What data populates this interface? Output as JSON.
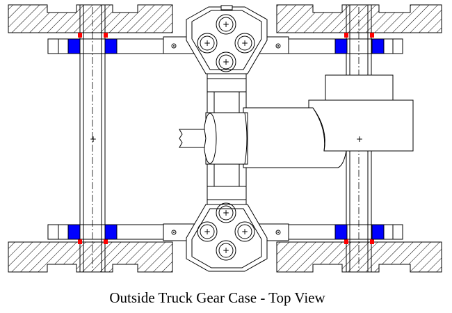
{
  "caption": "Outside Truck Gear Case - Top View",
  "colors": {
    "background": "#ffffff",
    "line": "#000000",
    "bearing_block": "#0000ff",
    "contact_mark": "#ff0000"
  },
  "center_marks": [
    "+",
    "+",
    "+",
    "+",
    "+",
    "+",
    "+",
    "+",
    "+",
    "+"
  ],
  "bolt_icons": [
    "bolt-icon",
    "bolt-icon",
    "bolt-icon",
    "bolt-icon"
  ]
}
